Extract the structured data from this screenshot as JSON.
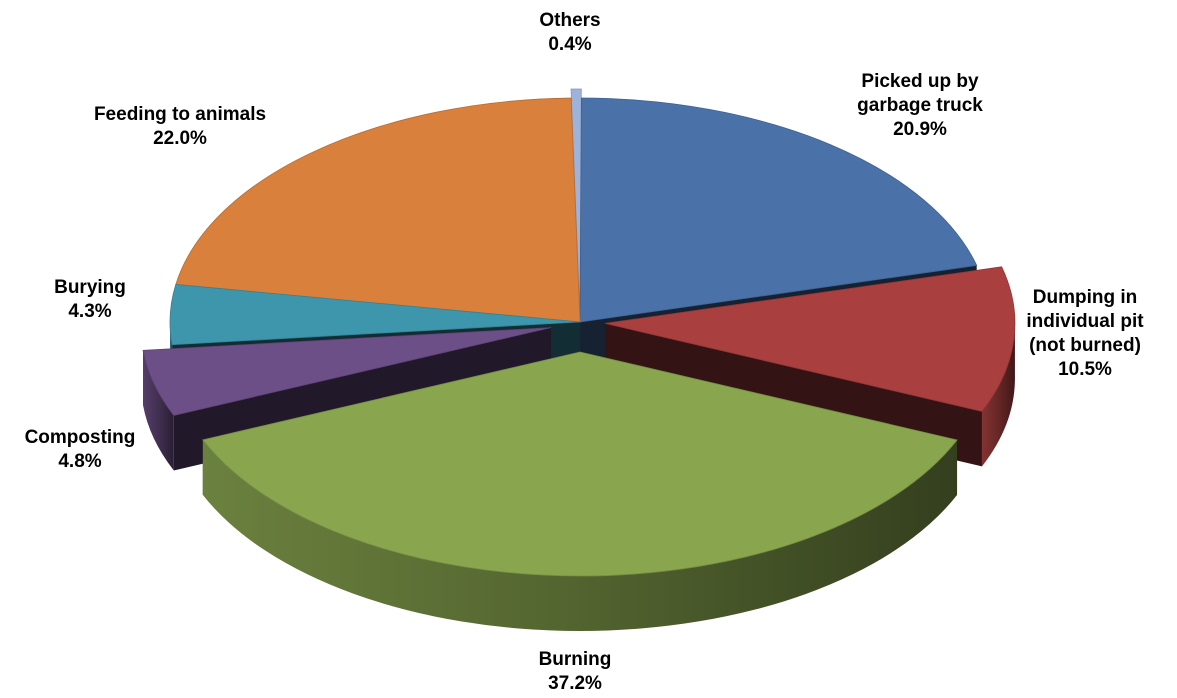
{
  "chart_data": {
    "type": "pie",
    "style": "3d-exploded",
    "title": "",
    "legend": "none",
    "slices": [
      {
        "label": "Picked up by garbage truck",
        "label_lines": [
          "Picked up by",
          "garbage truck"
        ],
        "value": 20.9,
        "value_label": "20.9%",
        "color": "#4A72A8"
      },
      {
        "label": "Dumping in individual pit (not burned)",
        "label_lines": [
          "Dumping in",
          "individual pit",
          "(not burned)"
        ],
        "value": 10.5,
        "value_label": "10.5%",
        "color": "#A9403F"
      },
      {
        "label": "Burning",
        "label_lines": [
          "Burning"
        ],
        "value": 37.2,
        "value_label": "37.2%",
        "color": "#89A64F"
      },
      {
        "label": "Composting",
        "label_lines": [
          "Composting"
        ],
        "value": 4.8,
        "value_label": "4.8%",
        "color": "#6D4F88"
      },
      {
        "label": "Burying",
        "label_lines": [
          "Burying"
        ],
        "value": 4.3,
        "value_label": "4.3%",
        "color": "#3E96AD"
      },
      {
        "label": "Feeding to animals",
        "label_lines": [
          "Feeding to animals"
        ],
        "value": 22.0,
        "value_label": "22.0%",
        "color": "#D8803C"
      },
      {
        "label": "Others",
        "label_lines": [
          "Others"
        ],
        "value": 0.4,
        "value_label": "0.4%",
        "color": "#9DB3DB"
      }
    ]
  }
}
